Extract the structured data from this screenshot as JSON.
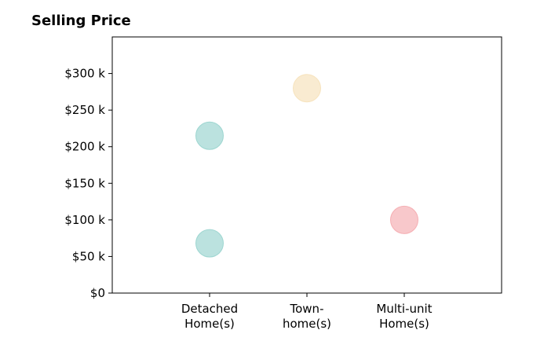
{
  "chart_data": {
    "type": "scatter",
    "title": "Selling Price",
    "categories": [
      "Detached\nHome(s)",
      "Town-\nhome(s)",
      "Multi-unit\nHome(s)"
    ],
    "y_tick_labels": [
      "$0",
      "$50 k",
      "$100 k",
      "$150 k",
      "$200 k",
      "$250 k",
      "$300 k"
    ],
    "y_ticks": [
      0,
      50000,
      100000,
      150000,
      200000,
      250000,
      300000
    ],
    "ylim": [
      0,
      350000
    ],
    "xlim": [
      -1,
      3
    ],
    "grid": false,
    "points": [
      {
        "category": "Detached\nHome(s)",
        "x": 0,
        "y": 215000,
        "color": "#8ecfc9"
      },
      {
        "category": "Detached\nHome(s)",
        "x": 0,
        "y": 68000,
        "color": "#8ecfc9"
      },
      {
        "category": "Town-\nhome(s)",
        "x": 1,
        "y": 280000,
        "color": "#f5deb3"
      },
      {
        "category": "Multi-unit\nHome(s)",
        "x": 2,
        "y": 100000,
        "color": "#f4a3a8"
      }
    ]
  }
}
